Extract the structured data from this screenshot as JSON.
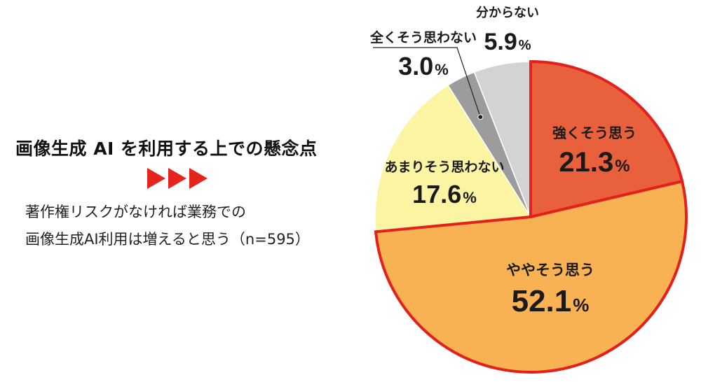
{
  "heading": {
    "title": "画像生成 AI を利用する上での懸念点",
    "line1": "著作権リスクがなければ業務での",
    "line2": "画像生成AI利用は増えると思う（n=595）"
  },
  "colors": {
    "accent_red": "#e3201b",
    "arrow_red": "#e5251d"
  },
  "chart_data": {
    "type": "pie",
    "start": "12 o'clock",
    "direction": "clockwise",
    "slices": [
      {
        "label": "強くそう思う",
        "value": 21.3,
        "value_label": "21.3",
        "unit": "%",
        "color": "#e8603c",
        "highlight": true
      },
      {
        "label": "ややそう思う",
        "value": 52.1,
        "value_label": "52.1",
        "unit": "%",
        "color": "#f8b253",
        "highlight": true
      },
      {
        "label": "あまりそう思わない",
        "value": 17.6,
        "value_label": "17.6",
        "unit": "%",
        "color": "#fbf4a3",
        "highlight": false
      },
      {
        "label": "全くそう思わない",
        "value": 3.0,
        "value_label": "3.0",
        "unit": "%",
        "color": "#9c9c9c",
        "highlight": false
      },
      {
        "label": "分からない",
        "value": 5.9,
        "value_label": "5.9",
        "unit": "%",
        "color": "#d3d3d3",
        "highlight": false
      }
    ]
  }
}
